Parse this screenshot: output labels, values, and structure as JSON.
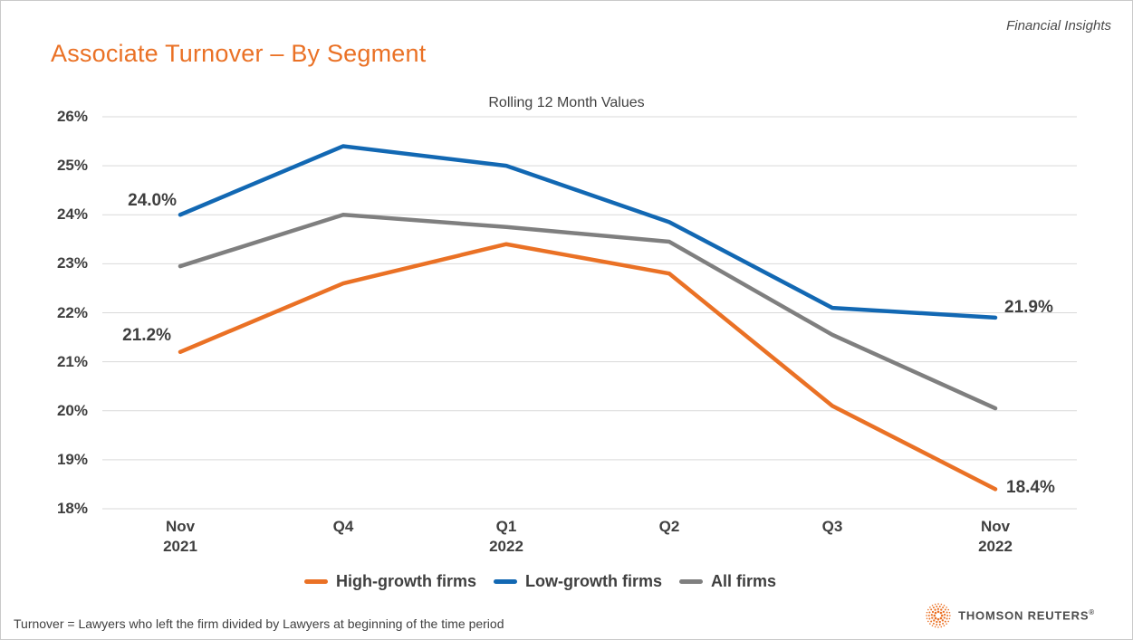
{
  "page": {
    "corner_note": "Financial Insights",
    "title": "Associate Turnover – By Segment",
    "subtitle": "Rolling 12 Month Values",
    "footnote": "Turnover = Lawyers who left the firm divided by Lawyers at beginning of the time period"
  },
  "branding": {
    "logo_text": "THOMSON REUTERS",
    "reg_mark": "®"
  },
  "colors": {
    "accent_orange": "#ea7125",
    "series_high_growth": "#ea7125",
    "series_low_growth": "#1268b3",
    "series_all_firms": "#7f7f7f",
    "gridline": "#d9d9d9",
    "text_dark": "#3f3f3f"
  },
  "chart_data": {
    "type": "line",
    "title": "Rolling 12 Month Values",
    "categories": [
      "Nov 2021",
      "Q4",
      "Q1 2022",
      "Q2",
      "Q3",
      "Nov 2022"
    ],
    "series": [
      {
        "name": "High-growth firms",
        "color": "#ea7125",
        "values": [
          21.2,
          22.6,
          23.4,
          22.8,
          20.1,
          18.4
        ]
      },
      {
        "name": "Low-growth firms",
        "color": "#1268b3",
        "values": [
          24.0,
          25.4,
          25.0,
          23.85,
          22.1,
          21.9
        ]
      },
      {
        "name": "All firms",
        "color": "#7f7f7f",
        "values": [
          22.95,
          24.0,
          23.75,
          23.45,
          21.55,
          20.05
        ]
      }
    ],
    "ylim": [
      18,
      26
    ],
    "ytick_step": 1,
    "yticks": [
      "26%",
      "25%",
      "24%",
      "23%",
      "22%",
      "21%",
      "20%",
      "19%",
      "18%"
    ],
    "xticks": [
      {
        "l1": "Nov",
        "l2": "2021"
      },
      {
        "l1": "Q4",
        "l2": ""
      },
      {
        "l1": "Q1",
        "l2": "2022"
      },
      {
        "l1": "Q2",
        "l2": ""
      },
      {
        "l1": "Q3",
        "l2": ""
      },
      {
        "l1": "Nov",
        "l2": "2022"
      }
    ],
    "grid": "horizontal-only",
    "legend_position": "bottom",
    "annotations": [
      {
        "text": "24.0%",
        "series": "Low-growth firms",
        "point": "first"
      },
      {
        "text": "21.2%",
        "series": "High-growth firms",
        "point": "first"
      },
      {
        "text": "21.9%",
        "series": "Low-growth firms",
        "point": "last"
      },
      {
        "text": "18.4%",
        "series": "High-growth firms",
        "point": "last"
      }
    ]
  }
}
